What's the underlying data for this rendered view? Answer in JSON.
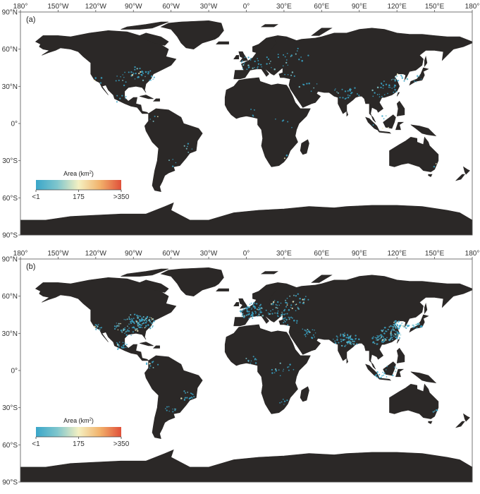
{
  "panels": [
    {
      "label": "(a)",
      "density": 0.35
    },
    {
      "label": "(b)",
      "density": 1.0
    }
  ],
  "axes": {
    "lon_ticks": [
      "180°",
      "150°W",
      "120°W",
      "90°W",
      "60°W",
      "30°W",
      "0°",
      "30°E",
      "60°E",
      "90°E",
      "120°E",
      "150°E",
      "180°"
    ],
    "lat_ticks": [
      "90°N",
      "60°N",
      "30°N",
      "0°",
      "30°S",
      "60°S",
      "90°S"
    ]
  },
  "legend": {
    "title_prefix": "Area (km",
    "title_sup": "2",
    "title_suffix": ")",
    "tick_labels": [
      "<1",
      "175",
      ">350"
    ],
    "colors": [
      "#3aa6c9",
      "#7fc6cd",
      "#f4f0c2",
      "#f2b26b",
      "#e0503a"
    ]
  },
  "colors": {
    "land": "#2b2827",
    "ocean": "#ffffff",
    "frame": "#555555"
  }
}
